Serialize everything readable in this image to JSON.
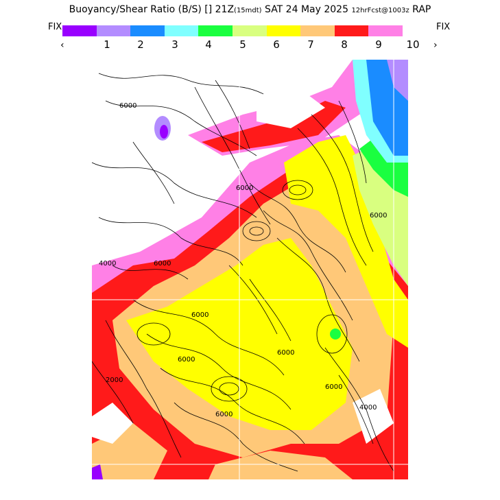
{
  "header": {
    "title_main": "Buoyancy/Shear Ratio (B/S) [] 21Z",
    "title_valid": "(15mdt)",
    "title_date": "SAT 24 May 2025",
    "title_run": "12hrFcst@1003z",
    "title_model": "RAP"
  },
  "colorbar": {
    "fix_left": "FIX",
    "fix_right": "FIX",
    "prev": "‹",
    "next": "›",
    "colors": [
      "#9900ff",
      "#b38cff",
      "#1a8cff",
      "#80ffff",
      "#1aff40",
      "#d9ff80",
      "#ffff00",
      "#ffc878",
      "#ff1a1a",
      "#ff80e6"
    ],
    "ticks": [
      "1",
      "2",
      "3",
      "4",
      "5",
      "6",
      "7",
      "8",
      "9",
      "10"
    ]
  },
  "map": {
    "contour_labels": [
      "6000",
      "6000",
      "6000",
      "6000",
      "6000",
      "4000",
      "2000",
      "6000",
      "6000",
      "6000",
      "4000",
      "6000"
    ]
  }
}
